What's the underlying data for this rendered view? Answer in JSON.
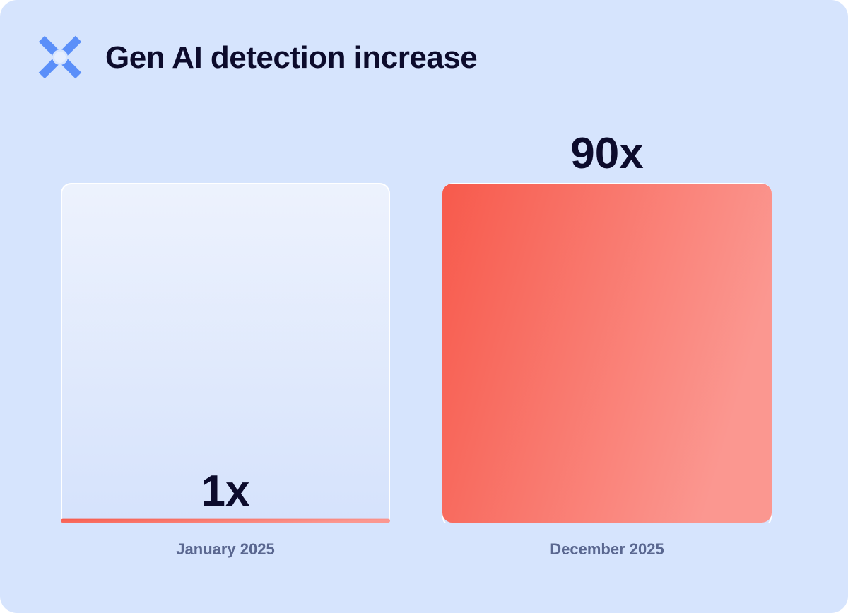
{
  "title": "Gen AI detection increase",
  "logo_icon": "x-cross-logo-icon",
  "colors": {
    "background": "#d6e4fd",
    "accent": "#5b8ff9",
    "bar": "#f75a4c",
    "text": "#0c0b2c",
    "label": "#5a6790"
  },
  "chart_data": {
    "type": "bar",
    "title": "Gen AI detection increase",
    "categories": [
      "January 2025",
      "December 2025"
    ],
    "values": [
      1,
      90
    ],
    "data_labels": [
      "1x",
      "90x"
    ],
    "ylim": [
      0,
      90
    ],
    "grid": false,
    "xlabel": "",
    "ylabel": ""
  }
}
